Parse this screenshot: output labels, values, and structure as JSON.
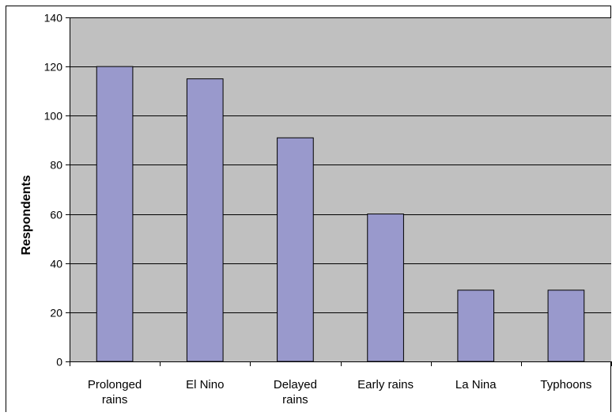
{
  "chart_data": {
    "type": "bar",
    "title": "",
    "xlabel": "",
    "ylabel": "Respondents",
    "categories": [
      [
        "Prolonged",
        "rains"
      ],
      [
        "El Nino"
      ],
      [
        "Delayed",
        "rains"
      ],
      [
        "Early rains"
      ],
      [
        "La Nina"
      ],
      [
        "Typhoons"
      ]
    ],
    "values": [
      120,
      115,
      91,
      60,
      29,
      29
    ],
    "ylim": [
      0,
      140
    ],
    "yticks": [
      "0",
      "20",
      "40",
      "60",
      "80",
      "100",
      "120",
      "140"
    ],
    "grid": true,
    "legend": "none",
    "colors": {
      "plot_background": "#c0c0c0",
      "bar_fill": "#9999cc",
      "bar_stroke": "#000000",
      "gridline": "#000000",
      "frame": "#000000"
    }
  }
}
